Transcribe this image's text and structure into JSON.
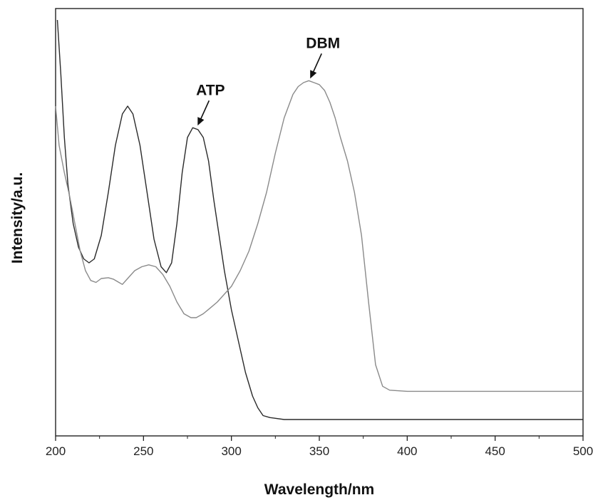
{
  "chart_data": {
    "type": "line",
    "xlabel": "Wavelength/nm",
    "ylabel": "Intensity/a.u.",
    "xlim": [
      200,
      500
    ],
    "ylim": [
      0,
      1
    ],
    "xticks": [
      200,
      250,
      300,
      350,
      400,
      450,
      500
    ],
    "grid": false,
    "legend": "none",
    "series": [
      {
        "name": "ATP",
        "color": "#2a2a2a",
        "x": [
          201,
          203,
          205,
          207,
          210,
          213,
          216,
          219,
          222,
          226,
          230,
          234,
          238,
          241,
          244,
          248,
          252,
          256,
          260,
          263,
          266,
          269,
          272,
          275,
          278,
          281,
          284,
          287,
          290,
          293,
          296,
          300,
          304,
          308,
          312,
          315,
          318,
          322,
          330,
          350,
          400,
          450,
          500
        ],
        "y": [
          1.02,
          0.88,
          0.72,
          0.6,
          0.5,
          0.44,
          0.41,
          0.4,
          0.41,
          0.47,
          0.58,
          0.7,
          0.78,
          0.8,
          0.78,
          0.7,
          0.58,
          0.46,
          0.39,
          0.375,
          0.4,
          0.5,
          0.63,
          0.72,
          0.745,
          0.74,
          0.72,
          0.66,
          0.56,
          0.47,
          0.38,
          0.28,
          0.2,
          0.12,
          0.06,
          0.03,
          0.01,
          0.005,
          0.0,
          0.0,
          0.0,
          0.0,
          0.0
        ]
      },
      {
        "name": "DBM",
        "color": "#8a8a8a",
        "x": [
          200,
          202,
          205,
          208,
          211,
          214,
          217,
          220,
          223,
          226,
          230,
          233,
          236,
          238,
          241,
          245,
          249,
          253,
          257,
          261,
          265,
          269,
          273,
          277,
          280,
          284,
          288,
          292,
          296,
          300,
          305,
          310,
          315,
          320,
          325,
          330,
          335,
          338,
          341,
          344,
          347,
          350,
          353,
          356,
          359,
          362,
          366,
          370,
          374,
          378,
          382,
          386,
          390,
          400,
          450,
          500
        ],
        "y": [
          0.8,
          0.7,
          0.63,
          0.57,
          0.5,
          0.43,
          0.38,
          0.355,
          0.35,
          0.36,
          0.362,
          0.358,
          0.35,
          0.345,
          0.36,
          0.38,
          0.39,
          0.395,
          0.39,
          0.37,
          0.34,
          0.3,
          0.27,
          0.26,
          0.26,
          0.27,
          0.285,
          0.3,
          0.32,
          0.34,
          0.38,
          0.43,
          0.5,
          0.58,
          0.68,
          0.77,
          0.83,
          0.85,
          0.86,
          0.865,
          0.86,
          0.855,
          0.84,
          0.81,
          0.77,
          0.72,
          0.66,
          0.58,
          0.47,
          0.3,
          0.14,
          0.085,
          0.075,
          0.072,
          0.072,
          0.072
        ]
      }
    ],
    "annotations": [
      {
        "text": "ATP",
        "x": 280,
        "y": 0.745
      },
      {
        "text": "DBM",
        "x": 344,
        "y": 0.865
      }
    ]
  }
}
